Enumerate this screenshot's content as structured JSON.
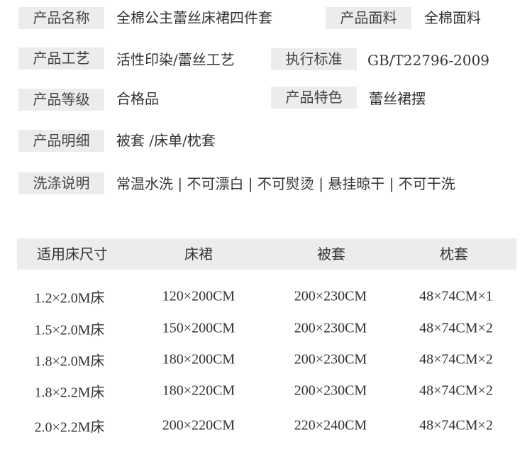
{
  "specs": [
    {
      "label": "产品名称",
      "value": "全棉公主蕾丝床裙四件套"
    },
    {
      "label": "产品面料",
      "value": "全棉面料"
    },
    {
      "label": "产品工艺",
      "value": "活性印染/蕾丝工艺"
    },
    {
      "label": "执行标准",
      "value": "GB/T22796-2009"
    },
    {
      "label": "产品等级",
      "value": "合格品"
    },
    {
      "label": "产品特色",
      "value": "蕾丝裙摆"
    },
    {
      "label": "产品明细",
      "value": "被套 /床单/枕套"
    },
    {
      "label": "洗涤说明",
      "value": "常温水洗 | 不可漂白 | 不可熨烫 | 悬挂晾干 | 不可干洗"
    }
  ],
  "size_table": {
    "headers": [
      "适用床尺寸",
      "床裙",
      "被套",
      "枕套"
    ],
    "rows": [
      [
        "1.2×2.0M床",
        "120×200CM",
        "200×230CM",
        "48×74CM×1"
      ],
      [
        "1.5×2.0M床",
        "150×200CM",
        "200×230CM",
        "48×74CM×2"
      ],
      [
        "1.8×2.0M床",
        "180×200CM",
        "200×230CM",
        "48×74CM×2"
      ],
      [
        "1.8×2.2M床",
        "180×220CM",
        "200×230CM",
        "48×74CM×2"
      ],
      [
        "2.0×2.2M床",
        "200×220CM",
        "220×240CM",
        "48×74CM×2"
      ]
    ]
  }
}
